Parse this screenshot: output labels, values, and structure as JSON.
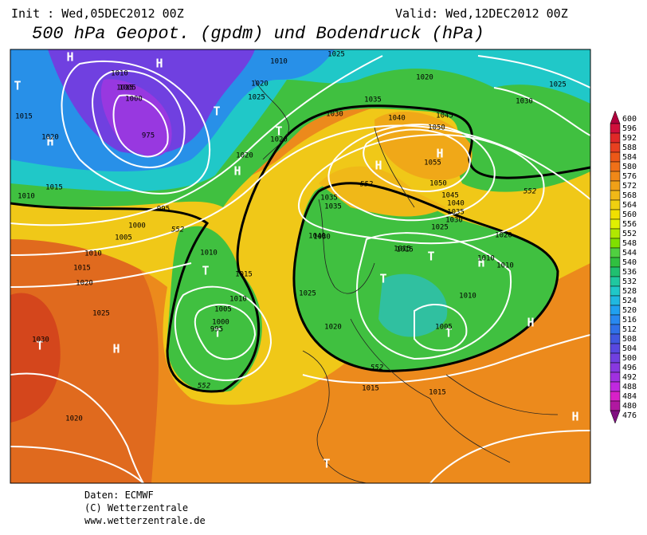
{
  "header": {
    "init": "Init : Wed,05DEC2012 00Z",
    "valid": "Valid: Wed,12DEC2012 00Z",
    "title": "500 hPa Geopot. (gpdm) und Bodendruck (hPa)"
  },
  "colorbar": {
    "levels": [
      "600",
      "596",
      "592",
      "588",
      "584",
      "580",
      "576",
      "572",
      "568",
      "564",
      "560",
      "556",
      "552",
      "548",
      "544",
      "540",
      "536",
      "532",
      "528",
      "524",
      "520",
      "516",
      "512",
      "508",
      "504",
      "500",
      "496",
      "492",
      "488",
      "484",
      "480",
      "476"
    ],
    "colors": [
      "#b0003c",
      "#d0103c",
      "#e02828",
      "#e84020",
      "#ec5818",
      "#f07018",
      "#f08818",
      "#f0a018",
      "#f0b818",
      "#f0d010",
      "#f0e000",
      "#e0f000",
      "#b0e800",
      "#80e000",
      "#50d040",
      "#30c040",
      "#20c070",
      "#20c8a0",
      "#20c8c8",
      "#20b8e0",
      "#20a0f0",
      "#2888f0",
      "#3070e8",
      "#4058e0",
      "#5848e0",
      "#7040e0",
      "#8838e0",
      "#a030e0",
      "#c028e0",
      "#d820c8",
      "#b018a0",
      "#801080"
    ]
  },
  "centers": [
    "H",
    "H",
    "T",
    "H",
    "T",
    "H",
    "H",
    "T",
    "T",
    "H",
    "T",
    "T",
    "H",
    "T",
    "H",
    "T",
    "H",
    "T",
    "H",
    "T"
  ],
  "isobar_labels": [
    "1010",
    "1015",
    "1010",
    "1020",
    "1025",
    "1025",
    "1020",
    "1035",
    "1040",
    "1020",
    "1015",
    "1005",
    "1000",
    "995",
    "1020",
    "975",
    "1015",
    "1020",
    "1030",
    "1035",
    "1040",
    "1045",
    "1050",
    "1055",
    "1050",
    "1045",
    "1040",
    "1035",
    "1030",
    "1025",
    "1020",
    "1015",
    "1000",
    "1005",
    "1010",
    "1015",
    "1020",
    "1025",
    "1030",
    "1010",
    "1015",
    "1010",
    "1005",
    "1000",
    "995",
    "1035",
    "1030",
    "1025",
    "1020",
    "1015",
    "1010",
    "1010",
    "1010",
    "1005",
    "1015",
    "1015",
    "1025",
    "1020",
    "1030",
    "1010"
  ],
  "contour_labels": [
    "552",
    "552",
    "552",
    "552",
    "552"
  ],
  "footer": {
    "lines": [
      "Daten: ECMWF",
      "(C) Wetterzentrale",
      "www.wetterzentrale.de"
    ]
  }
}
